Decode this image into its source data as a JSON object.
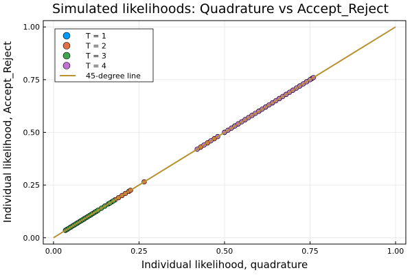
{
  "chart_data": {
    "type": "scatter",
    "title": "Simulated likelihoods: Quadrature vs Accept_Reject",
    "xlabel": "Individual likelihood, quadrature",
    "ylabel": "Individual likelihood, Accept_Reject",
    "xlim": [
      -0.03,
      1.03
    ],
    "ylim": [
      -0.03,
      1.03
    ],
    "xticks": [
      0.0,
      0.25,
      0.5,
      0.75,
      1.0
    ],
    "yticks": [
      0.0,
      0.25,
      0.5,
      0.75,
      1.0
    ],
    "xtick_labels": [
      "0.00",
      "0.25",
      "0.50",
      "0.75",
      "1.00"
    ],
    "ytick_labels": [
      "0.00",
      "0.25",
      "0.50",
      "0.75",
      "1.00"
    ],
    "grid": true,
    "legend_position": "top-left",
    "series": [
      {
        "name": "T = 1",
        "color": "#009AFA",
        "points": [
          [
            0.04,
            0.04
          ],
          [
            0.06,
            0.06
          ],
          [
            0.08,
            0.08
          ],
          [
            0.1,
            0.1
          ],
          [
            0.12,
            0.12
          ],
          [
            0.54,
            0.54
          ],
          [
            0.6,
            0.6
          ],
          [
            0.66,
            0.66
          ],
          [
            0.72,
            0.72
          ]
        ]
      },
      {
        "name": "T = 2",
        "color": "#E36F47",
        "points": [
          [
            0.035,
            0.035
          ],
          [
            0.05,
            0.05
          ],
          [
            0.07,
            0.07
          ],
          [
            0.09,
            0.09
          ],
          [
            0.11,
            0.11
          ],
          [
            0.13,
            0.13
          ],
          [
            0.15,
            0.15
          ],
          [
            0.17,
            0.17
          ],
          [
            0.18,
            0.18
          ],
          [
            0.19,
            0.19
          ],
          [
            0.2,
            0.2
          ],
          [
            0.21,
            0.21
          ],
          [
            0.22,
            0.22
          ],
          [
            0.225,
            0.225
          ],
          [
            0.265,
            0.265
          ],
          [
            0.43,
            0.43
          ],
          [
            0.45,
            0.45
          ],
          [
            0.47,
            0.47
          ],
          [
            0.5,
            0.5
          ],
          [
            0.53,
            0.53
          ],
          [
            0.56,
            0.56
          ],
          [
            0.58,
            0.58
          ],
          [
            0.6,
            0.6
          ],
          [
            0.62,
            0.62
          ],
          [
            0.64,
            0.64
          ],
          [
            0.66,
            0.66
          ],
          [
            0.68,
            0.68
          ],
          [
            0.7,
            0.7
          ],
          [
            0.72,
            0.72
          ],
          [
            0.74,
            0.74
          ],
          [
            0.755,
            0.755
          ]
        ]
      },
      {
        "name": "T = 3",
        "color": "#3EA44E",
        "points": [
          [
            0.035,
            0.035
          ],
          [
            0.04,
            0.04
          ],
          [
            0.045,
            0.045
          ],
          [
            0.05,
            0.05
          ],
          [
            0.055,
            0.055
          ],
          [
            0.06,
            0.06
          ],
          [
            0.065,
            0.065
          ],
          [
            0.07,
            0.07
          ],
          [
            0.075,
            0.075
          ],
          [
            0.08,
            0.08
          ],
          [
            0.085,
            0.085
          ],
          [
            0.09,
            0.09
          ],
          [
            0.095,
            0.095
          ],
          [
            0.1,
            0.1
          ],
          [
            0.105,
            0.105
          ],
          [
            0.11,
            0.11
          ],
          [
            0.115,
            0.115
          ],
          [
            0.12,
            0.12
          ],
          [
            0.125,
            0.125
          ],
          [
            0.13,
            0.13
          ],
          [
            0.14,
            0.14
          ],
          [
            0.15,
            0.15
          ],
          [
            0.16,
            0.16
          ],
          [
            0.165,
            0.165
          ],
          [
            0.175,
            0.175
          ]
        ]
      },
      {
        "name": "T = 4",
        "color": "#C271D2",
        "points": [
          [
            0.42,
            0.42
          ],
          [
            0.44,
            0.44
          ],
          [
            0.46,
            0.46
          ],
          [
            0.48,
            0.48
          ],
          [
            0.5,
            0.5
          ],
          [
            0.51,
            0.51
          ],
          [
            0.52,
            0.52
          ],
          [
            0.53,
            0.53
          ],
          [
            0.54,
            0.54
          ],
          [
            0.55,
            0.55
          ],
          [
            0.56,
            0.56
          ],
          [
            0.57,
            0.57
          ],
          [
            0.58,
            0.58
          ],
          [
            0.59,
            0.59
          ],
          [
            0.6,
            0.6
          ],
          [
            0.61,
            0.61
          ],
          [
            0.62,
            0.62
          ],
          [
            0.63,
            0.63
          ],
          [
            0.64,
            0.64
          ],
          [
            0.65,
            0.65
          ],
          [
            0.66,
            0.66
          ],
          [
            0.67,
            0.67
          ],
          [
            0.68,
            0.68
          ],
          [
            0.69,
            0.69
          ],
          [
            0.7,
            0.7
          ],
          [
            0.71,
            0.71
          ],
          [
            0.72,
            0.72
          ],
          [
            0.73,
            0.73
          ],
          [
            0.74,
            0.74
          ],
          [
            0.75,
            0.75
          ],
          [
            0.76,
            0.76
          ]
        ]
      }
    ],
    "reference_line": {
      "name": "45-degree line",
      "color": "#B8912F",
      "from": [
        0,
        0
      ],
      "to": [
        1,
        1
      ]
    }
  }
}
